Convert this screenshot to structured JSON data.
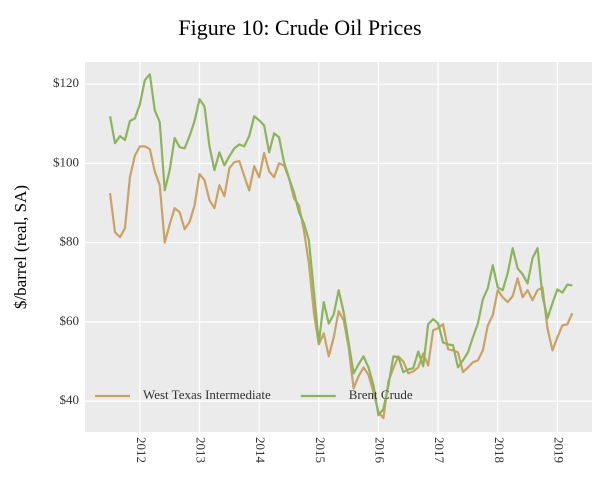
{
  "chart_data": {
    "type": "line",
    "title": "Figure 10: Crude Oil Prices",
    "ylabel": "$/barrel (real, SA)",
    "x": [
      2011.5,
      2011.583,
      2011.667,
      2011.75,
      2011.833,
      2011.917,
      2012,
      2012.083,
      2012.167,
      2012.25,
      2012.333,
      2012.417,
      2012.5,
      2012.583,
      2012.667,
      2012.75,
      2012.833,
      2012.917,
      2013,
      2013.083,
      2013.167,
      2013.25,
      2013.333,
      2013.417,
      2013.5,
      2013.583,
      2013.667,
      2013.75,
      2013.833,
      2013.917,
      2014,
      2014.083,
      2014.167,
      2014.25,
      2014.333,
      2014.417,
      2014.5,
      2014.583,
      2014.667,
      2014.75,
      2014.833,
      2014.917,
      2015,
      2015.083,
      2015.167,
      2015.25,
      2015.333,
      2015.417,
      2015.5,
      2015.583,
      2015.667,
      2015.75,
      2015.833,
      2015.917,
      2016,
      2016.083,
      2016.167,
      2016.25,
      2016.333,
      2016.417,
      2016.5,
      2016.583,
      2016.667,
      2016.75,
      2016.833,
      2016.917,
      2017,
      2017.083,
      2017.167,
      2017.25,
      2017.333,
      2017.417,
      2017.5,
      2017.583,
      2017.667,
      2017.75,
      2017.833,
      2017.917,
      2018,
      2018.083,
      2018.167,
      2018.25,
      2018.333,
      2018.417,
      2018.5,
      2018.583,
      2018.667,
      2018.75,
      2018.833,
      2018.917,
      2019,
      2019.083,
      2019.167,
      2019.25
    ],
    "series": [
      {
        "name": "West Texas Intermediate",
        "color": "#c9a264",
        "values": [
          92.5,
          82.6,
          81.4,
          83.6,
          96.5,
          102,
          104.3,
          104.3,
          103.6,
          98,
          94.5,
          80,
          84.6,
          88.7,
          87.7,
          83.4,
          85.2,
          89.4,
          97.3,
          95.8,
          90.7,
          88.7,
          94.5,
          91.7,
          98.8,
          100.3,
          100.6,
          96.8,
          93.2,
          99.3,
          96.5,
          102.6,
          98,
          96.5,
          100,
          99.5,
          96.3,
          91.2,
          89.4,
          83.1,
          74.8,
          62.4,
          54.3,
          57.1,
          51.3,
          56.1,
          62.7,
          60.4,
          53.6,
          43.2,
          46.3,
          48.5,
          46.6,
          42.2,
          37.2,
          35.7,
          45,
          48.3,
          51.3,
          50,
          47,
          47.5,
          48.5,
          52,
          49,
          57.9,
          58.4,
          59.4,
          53.1,
          52.8,
          52.3,
          47.3,
          48.5,
          49.8,
          50.3,
          52.8,
          59.1,
          61.7,
          68,
          66.2,
          65,
          66.5,
          71,
          66.2,
          68,
          65.5,
          68,
          68.7,
          58.4,
          52.8,
          56.1,
          59.1,
          59.4,
          62.2
        ]
      },
      {
        "name": "Brent Crude",
        "color": "#8db35d",
        "values": [
          111.9,
          105.1,
          106.9,
          105.9,
          110.7,
          111.4,
          114.9,
          121,
          122.5,
          113.4,
          110.4,
          93.2,
          98.3,
          106.4,
          104.1,
          103.8,
          106.9,
          110.7,
          116.2,
          114.4,
          104.3,
          98.3,
          102.8,
          99.5,
          101.8,
          103.8,
          104.8,
          104.3,
          106.9,
          111.9,
          110.9,
          109.6,
          102.8,
          107.6,
          106.6,
          100.3,
          96.3,
          92.7,
          87.7,
          84.9,
          80.6,
          67.7,
          54.8,
          65,
          59.6,
          61.9,
          68,
          62.4,
          54.8,
          47,
          49.3,
          51.3,
          48.5,
          44,
          36.4,
          38,
          44,
          51.3,
          51.1,
          47.3,
          48,
          48.3,
          52.5,
          48.8,
          59.4,
          60.7,
          59.6,
          54.8,
          54.3,
          54.1,
          48.5,
          50.3,
          52.3,
          56.1,
          59.6,
          65.7,
          68.5,
          74.3,
          68.7,
          68,
          72.3,
          78.6,
          73.5,
          72,
          69.7,
          76.1,
          78.6,
          66.5,
          60.9,
          64.7,
          68.2,
          67.4,
          69.4,
          69.2
        ]
      }
    ],
    "xlim": [
      2011.08,
      2019.58
    ],
    "xticks": [
      2012,
      2013,
      2014,
      2015,
      2016,
      2017,
      2018,
      2019
    ],
    "ylim": [
      32.2,
      125.6
    ],
    "yticks": [
      {
        "value": 40,
        "label": "$40"
      },
      {
        "value": 60,
        "label": "$60"
      },
      {
        "value": 80,
        "label": "$80"
      },
      {
        "value": 100,
        "label": "$100"
      },
      {
        "value": 120,
        "label": "$120"
      }
    ],
    "grid": true,
    "legend": "lower left"
  }
}
